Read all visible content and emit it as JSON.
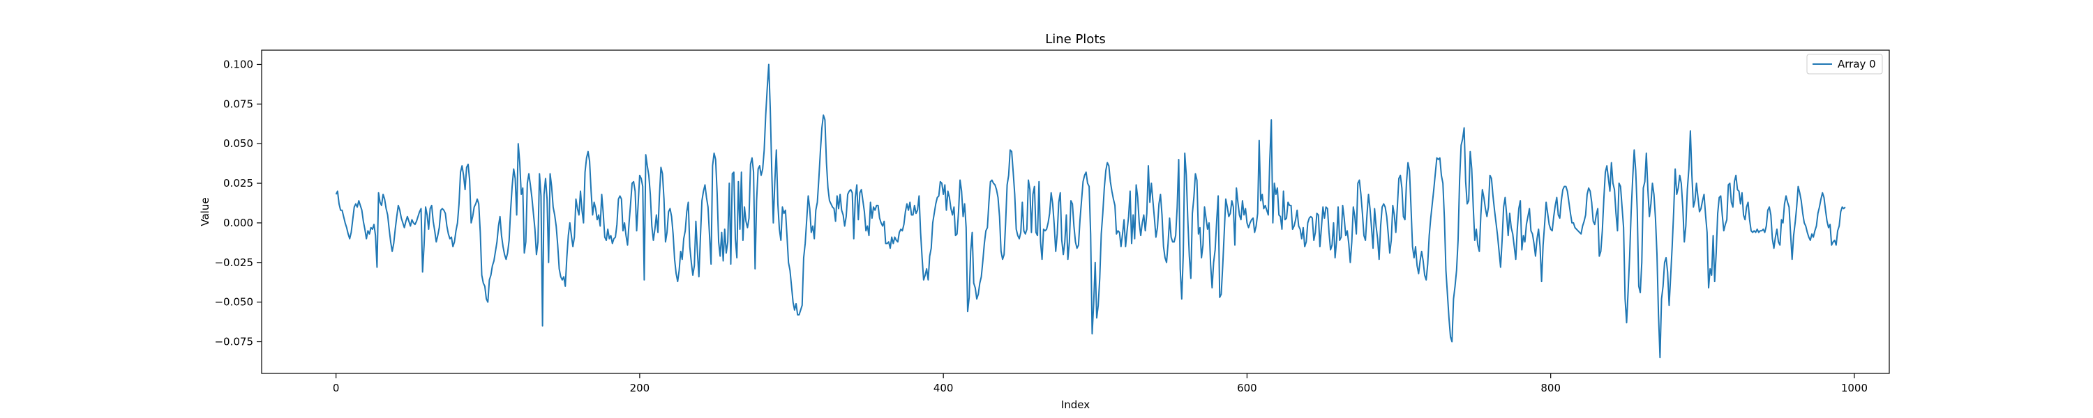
{
  "chart_data": {
    "type": "line",
    "title": "Line Plots",
    "xlabel": "Index",
    "ylabel": "Value",
    "xlim": [
      -49,
      1023
    ],
    "ylim": [
      -0.095,
      0.109
    ],
    "xticks": [
      0,
      200,
      400,
      600,
      800,
      1000
    ],
    "yticks": [
      -0.075,
      -0.05,
      -0.025,
      0.0,
      0.025,
      0.05,
      0.075,
      0.1
    ],
    "xtick_labels": [
      "0",
      "200",
      "400",
      "600",
      "800",
      "1000"
    ],
    "ytick_labels": [
      "−0.075",
      "−0.050",
      "−0.025",
      "0.000",
      "0.025",
      "0.050",
      "0.075",
      "0.100"
    ],
    "grid": false,
    "legend": {
      "position": "top-right",
      "entries": [
        "Array 0"
      ]
    },
    "series": [
      {
        "name": "Array 0",
        "color": "#1f77b4",
        "x_start": 0,
        "x_step": 1,
        "values": [
          0.018,
          0.02,
          0.012,
          0.008,
          0.008,
          0.004,
          0.0,
          -0.003,
          -0.007,
          -0.01,
          -0.006,
          0.002,
          0.01,
          0.012,
          0.01,
          0.014,
          0.011,
          0.008,
          0.001,
          -0.004,
          -0.01,
          -0.005,
          -0.007,
          -0.003,
          -0.004,
          -0.001,
          -0.008,
          -0.028,
          0.019,
          0.013,
          0.011,
          0.018,
          0.015,
          0.009,
          0.005,
          -0.004,
          -0.012,
          -0.018,
          -0.013,
          -0.004,
          0.004,
          0.011,
          0.008,
          0.003,
          0.0,
          -0.003,
          0.001,
          0.004,
          0.001,
          -0.002,
          0.002,
          0.0,
          -0.001,
          0.001,
          0.004,
          0.007,
          0.009,
          -0.031,
          -0.014,
          0.01,
          0.005,
          -0.004,
          0.009,
          0.011,
          0.001,
          -0.005,
          -0.012,
          -0.008,
          -0.003,
          0.008,
          0.009,
          0.008,
          0.006,
          -0.002,
          -0.007,
          -0.01,
          -0.009,
          -0.015,
          -0.012,
          -0.005,
          0.0,
          0.012,
          0.032,
          0.036,
          0.03,
          0.021,
          0.035,
          0.037,
          0.027,
          0.0,
          0.004,
          0.01,
          0.012,
          0.015,
          0.012,
          -0.006,
          -0.033,
          -0.038,
          -0.04,
          -0.048,
          -0.05,
          -0.036,
          -0.033,
          -0.027,
          -0.024,
          -0.018,
          -0.012,
          -0.002,
          0.004,
          -0.008,
          -0.015,
          -0.02,
          -0.023,
          -0.019,
          -0.011,
          0.008,
          0.023,
          0.034,
          0.028,
          0.005,
          0.05,
          0.038,
          0.018,
          0.022,
          -0.019,
          -0.012,
          0.025,
          0.031,
          0.024,
          0.016,
          0.006,
          -0.004,
          -0.02,
          -0.012,
          0.031,
          0.017,
          -0.065,
          0.018,
          0.028,
          0.015,
          -0.025,
          0.031,
          0.023,
          0.01,
          0.005,
          -0.002,
          -0.014,
          -0.029,
          -0.034,
          -0.036,
          -0.034,
          -0.04,
          -0.022,
          -0.008,
          0.0,
          -0.008,
          -0.015,
          -0.009,
          0.015,
          0.009,
          0.005,
          0.02,
          0.008,
          0.0,
          0.032,
          0.041,
          0.045,
          0.039,
          0.02,
          0.005,
          0.013,
          0.009,
          0.002,
          0.005,
          -0.002,
          0.018,
          0.006,
          -0.009,
          -0.011,
          -0.004,
          -0.01,
          -0.008,
          -0.013,
          -0.01,
          -0.009,
          -0.001,
          0.015,
          0.017,
          0.015,
          -0.005,
          0.0,
          -0.008,
          -0.014,
          0.0,
          0.012,
          0.025,
          0.026,
          0.02,
          -0.005,
          0.012,
          0.03,
          0.028,
          0.023,
          -0.036,
          0.043,
          0.036,
          0.03,
          0.018,
          -0.002,
          -0.011,
          -0.004,
          0.005,
          -0.006,
          0.017,
          0.035,
          0.031,
          0.015,
          -0.012,
          -0.006,
          0.007,
          0.009,
          0.004,
          -0.007,
          -0.023,
          -0.032,
          -0.037,
          -0.03,
          -0.018,
          -0.023,
          -0.01,
          -0.005,
          0.007,
          0.013,
          -0.015,
          -0.025,
          -0.033,
          -0.027,
          0.001,
          -0.018,
          -0.034,
          -0.009,
          0.014,
          0.02,
          0.024,
          0.016,
          0.01,
          -0.008,
          -0.026,
          0.036,
          0.044,
          0.04,
          0.019,
          -0.012,
          -0.021,
          -0.006,
          -0.024,
          -0.004,
          -0.019,
          -0.012,
          0.025,
          -0.026,
          0.031,
          0.032,
          -0.01,
          -0.022,
          0.026,
          -0.004,
          0.032,
          -0.011,
          0.01,
          0.001,
          -0.003,
          0.003,
          0.037,
          0.041,
          0.032,
          -0.029,
          0.014,
          0.034,
          0.036,
          0.03,
          0.034,
          0.046,
          0.068,
          0.085,
          0.1,
          0.072,
          0.032,
          0.0,
          0.026,
          0.046,
          0.012,
          -0.004,
          -0.011,
          0.01,
          0.006,
          0.008,
          -0.008,
          -0.025,
          -0.03,
          -0.04,
          -0.05,
          -0.055,
          -0.051,
          -0.058,
          -0.058,
          -0.055,
          -0.052,
          -0.022,
          -0.013,
          0.002,
          0.017,
          0.009,
          -0.006,
          -0.002,
          -0.01,
          0.008,
          0.013,
          0.028,
          0.045,
          0.06,
          0.068,
          0.065,
          0.038,
          0.022,
          0.014,
          0.012,
          0.01,
          0.009,
          0.001,
          0.017,
          0.009,
          0.018,
          0.008,
          0.005,
          -0.002,
          0.004,
          0.018,
          0.02,
          0.021,
          0.019,
          -0.01,
          0.016,
          0.024,
          0.002,
          0.019,
          0.021,
          0.014,
          0.007,
          -0.005,
          -0.002,
          -0.008,
          0.013,
          0.003,
          0.01,
          0.008,
          0.011,
          0.011,
          0.003,
          0.0,
          -0.002,
          0.001,
          -0.013,
          -0.013,
          -0.012,
          -0.016,
          -0.009,
          -0.013,
          -0.009,
          -0.011,
          -0.012,
          -0.006,
          -0.004,
          -0.005,
          -0.001,
          0.007,
          0.012,
          0.008,
          0.013,
          0.005,
          0.005,
          0.011,
          0.006,
          0.008,
          0.017,
          -0.006,
          -0.022,
          -0.036,
          -0.033,
          -0.029,
          -0.036,
          -0.021,
          -0.016,
          0.0,
          0.006,
          0.012,
          0.016,
          0.017,
          0.026,
          0.025,
          0.018,
          0.024,
          0.008,
          0.02,
          0.016,
          0.009,
          0.005,
          0.01,
          -0.008,
          -0.007,
          0.007,
          0.027,
          0.02,
          0.004,
          0.012,
          -0.003,
          -0.056,
          -0.047,
          -0.018,
          -0.006,
          -0.038,
          -0.041,
          -0.048,
          -0.045,
          -0.038,
          -0.034,
          -0.024,
          -0.013,
          -0.005,
          -0.003,
          0.013,
          0.026,
          0.027,
          0.025,
          0.024,
          0.021,
          0.016,
          0.004,
          -0.018,
          -0.023,
          -0.02,
          0.0,
          0.024,
          0.03,
          0.046,
          0.045,
          0.032,
          0.018,
          -0.004,
          -0.008,
          -0.01,
          -0.006,
          0.013,
          -0.005,
          -0.007,
          -0.004,
          0.027,
          0.021,
          -0.006,
          0.018,
          0.023,
          -0.006,
          -0.008,
          0.026,
          -0.012,
          -0.023,
          -0.004,
          -0.005,
          -0.004,
          0.0,
          0.006,
          0.019,
          0.012,
          -0.001,
          -0.018,
          -0.007,
          0.013,
          0.019,
          -0.011,
          -0.02,
          -0.012,
          0.005,
          -0.023,
          -0.012,
          0.014,
          0.012,
          -0.002,
          -0.012,
          -0.016,
          -0.014,
          0.002,
          0.014,
          0.026,
          0.03,
          0.032,
          0.025,
          0.023,
          -0.007,
          -0.07,
          -0.051,
          -0.025,
          -0.06,
          -0.052,
          -0.035,
          -0.007,
          0.006,
          0.022,
          0.033,
          0.038,
          0.036,
          0.026,
          0.02,
          0.015,
          0.011,
          -0.007,
          -0.005,
          -0.006,
          -0.015,
          -0.007,
          0.002,
          -0.015,
          -0.005,
          0.004,
          0.02,
          -0.013,
          0.005,
          -0.01,
          0.024,
          0.016,
          0.0,
          -0.008,
          0.0,
          0.005,
          -0.005,
          0.006,
          0.036,
          0.013,
          0.025,
          0.014,
          0.003,
          -0.009,
          -0.003,
          0.012,
          0.018,
          0.005,
          -0.015,
          -0.022,
          -0.025,
          -0.013,
          0.003,
          -0.009,
          -0.012,
          -0.012,
          -0.008,
          0.01,
          0.04,
          -0.029,
          -0.048,
          -0.02,
          0.044,
          0.03,
          0.002,
          -0.021,
          -0.035,
          0.006,
          0.016,
          0.031,
          0.027,
          -0.007,
          -0.003,
          -0.022,
          -0.014,
          0.01,
          0.003,
          -0.004,
          0.0,
          -0.026,
          -0.041,
          -0.025,
          -0.017,
          0.001,
          0.017,
          -0.047,
          -0.045,
          -0.027,
          -0.006,
          0.015,
          0.01,
          0.004,
          0.006,
          0.014,
          0.01,
          -0.014,
          0.022,
          0.013,
          0.005,
          0.002,
          0.014,
          0.005,
          0.009,
          0.0,
          -0.003,
          0.0,
          0.002,
          0.003,
          -0.006,
          -0.002,
          0.006,
          0.052,
          0.014,
          0.018,
          0.009,
          0.011,
          0.008,
          0.005,
          0.04,
          0.065,
          0.0,
          0.025,
          0.018,
          0.022,
          0.005,
          0.004,
          -0.004,
          0.02,
          0.002,
          0.003,
          0.013,
          0.011,
          0.011,
          -0.004,
          -0.002,
          0.002,
          0.008,
          -0.002,
          -0.004,
          -0.01,
          -0.003,
          -0.015,
          -0.012,
          0.0,
          0.003,
          0.004,
          0.003,
          -0.011,
          -0.006,
          0.006,
          0.005,
          -0.015,
          -0.003,
          0.01,
          0.003,
          0.01,
          0.009,
          -0.006,
          -0.017,
          -0.014,
          0.0,
          -0.022,
          -0.011,
          0.01,
          -0.011,
          -0.009,
          0.011,
          0.003,
          -0.008,
          -0.005,
          -0.013,
          -0.025,
          -0.012,
          0.01,
          0.004,
          -0.007,
          0.025,
          0.027,
          0.018,
          0.006,
          -0.008,
          -0.011,
          0.005,
          0.018,
          0.009,
          -0.003,
          -0.016,
          0.009,
          -0.002,
          -0.01,
          -0.023,
          -0.002,
          0.01,
          0.012,
          0.01,
          0.004,
          -0.007,
          -0.019,
          -0.011,
          0.011,
          0.005,
          -0.006,
          0.01,
          0.028,
          0.03,
          0.022,
          0.004,
          0.002,
          0.025,
          0.038,
          0.033,
          0.01,
          -0.015,
          -0.022,
          -0.015,
          -0.027,
          -0.032,
          -0.024,
          -0.018,
          -0.024,
          -0.033,
          -0.036,
          -0.026,
          -0.008,
          0.003,
          0.012,
          0.021,
          0.031,
          0.041,
          0.04,
          0.041,
          0.03,
          0.025,
          0.003,
          -0.03,
          -0.045,
          -0.06,
          -0.072,
          -0.075,
          -0.048,
          -0.04,
          -0.03,
          -0.011,
          0.027,
          0.049,
          0.053,
          0.06,
          0.026,
          0.012,
          0.014,
          0.045,
          0.034,
          0.01,
          -0.011,
          -0.004,
          -0.014,
          -0.018,
          0.005,
          0.021,
          0.016,
          0.009,
          0.004,
          0.01,
          0.03,
          0.028,
          0.017,
          0.008,
          0.0,
          -0.008,
          -0.018,
          -0.028,
          -0.011,
          0.01,
          0.016,
          0.005,
          -0.008,
          0.006,
          -0.003,
          -0.007,
          -0.015,
          -0.023,
          -0.004,
          0.009,
          0.014,
          -0.017,
          -0.008,
          -0.012,
          -0.001,
          0.004,
          0.009,
          -0.005,
          -0.007,
          -0.013,
          -0.021,
          -0.01,
          -0.004,
          -0.015,
          -0.037,
          -0.014,
          -0.001,
          0.013,
          0.006,
          -0.001,
          -0.004,
          -0.005,
          0.004,
          0.011,
          0.016,
          0.005,
          0.003,
          0.014,
          0.021,
          0.023,
          0.023,
          0.02,
          0.013,
          0.006,
          0.0,
          0.0,
          -0.003,
          -0.004,
          -0.005,
          -0.006,
          -0.007,
          -0.002,
          0.001,
          0.005,
          0.018,
          0.022,
          0.02,
          0.013,
          0.001,
          -0.001,
          0.005,
          0.009,
          -0.021,
          -0.018,
          -0.005,
          0.015,
          0.032,
          0.036,
          0.028,
          0.02,
          0.038,
          0.025,
          0.021,
          0.006,
          -0.005,
          0.025,
          0.023,
          0.01,
          -0.003,
          -0.048,
          -0.063,
          -0.043,
          -0.021,
          0.007,
          0.028,
          0.046,
          0.033,
          0.008,
          -0.04,
          -0.044,
          -0.025,
          0.022,
          0.026,
          0.044,
          0.021,
          0.004,
          0.012,
          0.025,
          0.018,
          0.003,
          -0.02,
          -0.058,
          -0.085,
          -0.048,
          -0.04,
          -0.025,
          -0.022,
          -0.031,
          -0.052,
          -0.034,
          -0.015,
          0.007,
          0.034,
          0.018,
          0.022,
          0.03,
          0.025,
          0.01,
          -0.012,
          -0.002,
          0.021,
          0.034,
          0.058,
          0.03,
          0.01,
          0.014,
          0.025,
          0.016,
          0.007,
          0.009,
          0.014,
          0.018,
          0.005,
          -0.006,
          -0.041,
          -0.029,
          -0.033,
          -0.008,
          -0.037,
          -0.019,
          0.006,
          0.016,
          0.017,
          0.005,
          -0.005,
          -0.001,
          0.002,
          0.024,
          0.025,
          0.013,
          0.01,
          0.026,
          0.03,
          0.021,
          0.02,
          0.012,
          0.019,
          0.005,
          0.002,
          0.01,
          0.013,
          0.002,
          -0.005,
          -0.006,
          -0.005,
          -0.006,
          -0.004,
          -0.006,
          -0.005,
          -0.005,
          -0.004,
          -0.006,
          -0.002,
          0.008,
          0.01,
          0.005,
          -0.01,
          -0.016,
          -0.009,
          -0.004,
          -0.012,
          -0.014,
          0.002,
          0.0,
          0.012,
          0.017,
          0.013,
          0.01,
          -0.007,
          -0.023,
          -0.008,
          0.0,
          0.01,
          0.023,
          0.019,
          0.014,
          0.006,
          0.0,
          -0.002,
          -0.006,
          -0.009,
          -0.011,
          -0.007,
          -0.009,
          -0.005,
          -0.002,
          0.006,
          0.01,
          0.015,
          0.019,
          0.016,
          0.008,
          0.001,
          -0.003,
          -0.001,
          -0.014,
          -0.012,
          -0.011,
          -0.014,
          -0.005,
          -0.002,
          0.007,
          0.01,
          0.009,
          0.01
        ]
      }
    ]
  }
}
